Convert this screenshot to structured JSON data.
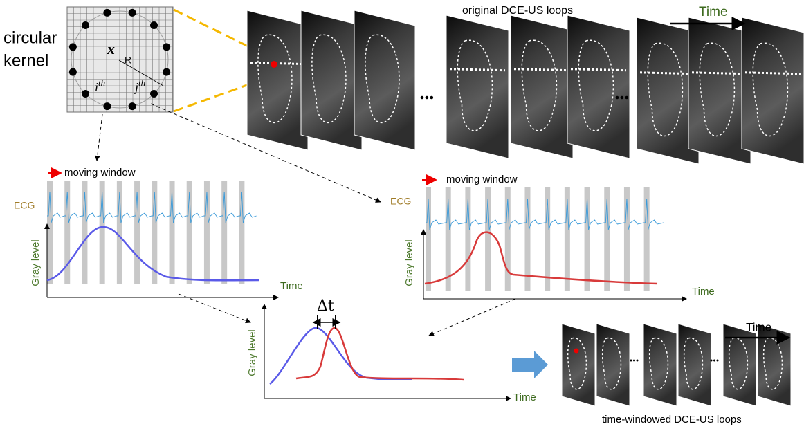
{
  "kernel": {
    "label_lines": [
      "circular",
      "kernel"
    ],
    "center": "x",
    "radius": "R",
    "point_i": {
      "base": "i",
      "sup": "th"
    },
    "point_j": {
      "base": "j",
      "sup": "th"
    }
  },
  "original_loops": {
    "title": "original DCE-US loops",
    "time_label": "Time"
  },
  "left_plot": {
    "legend": "moving window",
    "ecg_label": "ECG",
    "y_label": "Gray level",
    "x_label": "Time"
  },
  "right_plot": {
    "legend": "moving window",
    "ecg_label": "ECG",
    "y_label": "Gray level",
    "x_label": "Time"
  },
  "comparison_plot": {
    "delta": "Δt",
    "y_label": "Gray level",
    "x_label": "Time"
  },
  "windowed_loops": {
    "title": "time-windowed DCE-US loops",
    "time_label": "Time"
  }
}
